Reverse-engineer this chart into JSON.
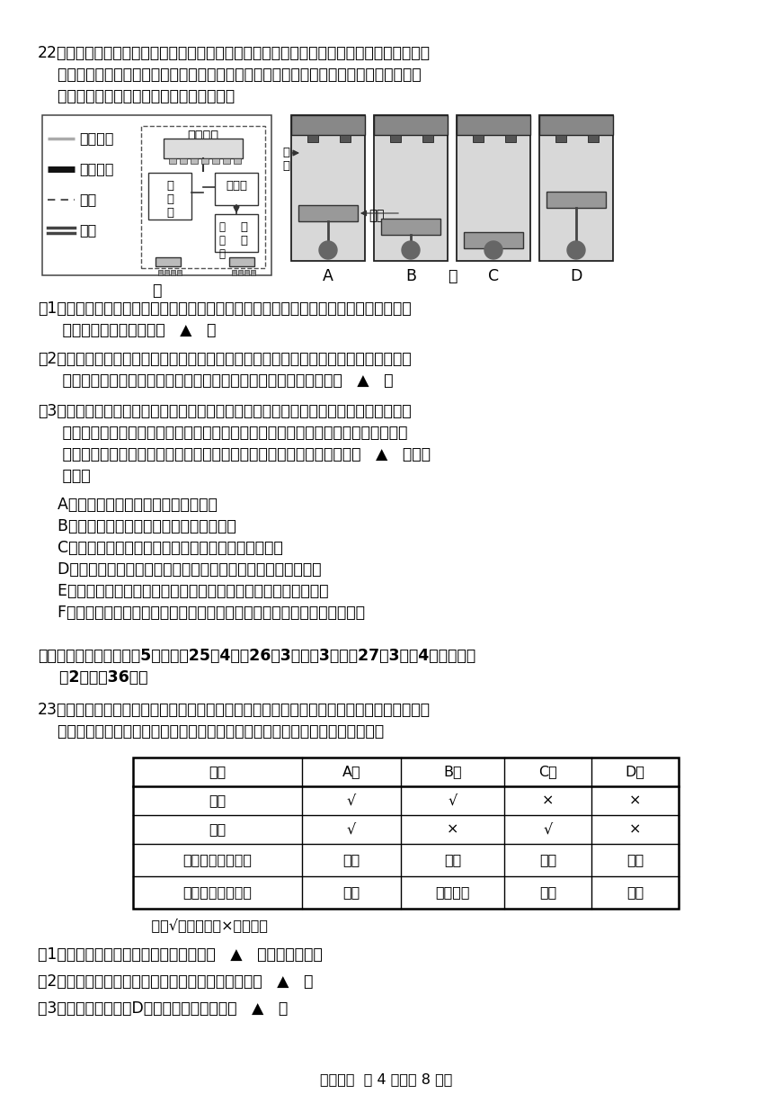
{
  "bg_color": "#ffffff",
  "text_color": "#000000",
  "font_size": 12.5,
  "font_size_small": 11.5,
  "font_size_tiny": 10.5,
  "page_width": 8.6,
  "page_height": 12.16,
  "q22_title": "22．为了减少汽车尾气排放造成大气污染的加剧，新能源汽车正逐渐成为汽车行业的焦点。插",
  "q22_line2": "    电式混动汽车是常见的一种新能源汽车，其驱动原理如图甲所示：行驶动力可由电动机或",
  "q22_line3": "    发动机单独提供，也可以由二者同时提供。",
  "q22_sub1_line1": "（1）当电池电量充足时，该汽车行驶时通过电池使电动机转动，从而驱动汽车行驶。此过",
  "q22_sub1_line2": "     程中能量的转化形式为：   ▲   。",
  "q22_sub2_line1": "（2）当电池电量不足时，插电式混动汽车动力由发动机提供。发动机是内燃机，通过燃油",
  "q22_sub2_line2": "     燃烧产生高压气体推动活塞做功，图乙中发动机产生动力的冲程的是   ▲   。",
  "q22_sub3_line1": "（3）电动汽车的核心部件之一是电池。当前新能源汽车应用的电池是以锂电池为主的液态",
  "q22_sub3_line2": "     电池。液态电池在安全性、电池容量等方面存在许多不足。因此研发固态电池成为许",
  "q22_sub3_line3": "     多车企未来重点课题，同时也面临挑战。下列观点反对研发固态电池的有   ▲   。（可",
  "q22_sub3_line4": "     多选）",
  "q22_optA": "    A．固态电池在高温下使用易发生爆炸",
  "q22_optB": "    B．固态电池内部电阻较大，充电时间较长",
  "q22_optC": "    C．生产固态电池需要高温高压环境，研发技术难度大",
  "q22_optD": "    D．固态电池的原材料比较稀缺，制作成本是液态电池的几百倍",
  "q22_optE": "    E．固态电池的能量密度更大，相同体积的固态电池续航能力更强",
  "q22_optF": "    F．相同容量的固态电池质量和体积更小，减轻汽车负重、增大了汽车空间",
  "section3_title": "三、实验探究题（本题有5小题，第25（4）、26（3）题各3分，第27（3）题4分，其余每",
  "section3_line2": "    空2分，共36分）",
  "q23_line1": "23．子宫是哺乳类动物胚胎发育的场所。某研究小组为了研究子宫是否具有其他功能进行如下",
  "q23_line2": "    实验：将若干大鼠随机均分成四组，每组大鼠执行不同的操作和任务，如下表：",
  "table_headers": [
    "组别",
    "A组",
    "B组",
    "C组",
    "D组"
  ],
  "table_row1": [
    "卵巢",
    "√",
    "√",
    "×",
    "×"
  ],
  "table_row2": [
    "子宫",
    "√",
    "×",
    "√",
    "×"
  ],
  "table_row3": [
    "基本记忆能力测试",
    "通过",
    "通过",
    "通过",
    "通过"
  ],
  "table_row4": [
    "复杂记忆能力测试",
    "通过",
    "无法通过",
    "通过",
    "通过"
  ],
  "table_note": "    注：√表示保留，×表示摘除",
  "q23_sub1": "（1）本实验中对大鼠的选择有什么要求？   ▲   。（列举两点）",
  "q23_sub2": "（2）本研究中，发现大鼠子宫还可能具有的功能是：   ▲   。",
  "q23_sub3": "（3）结合表中信息对D组实验现象作出解释。   ▲   。",
  "footer": "科学试题  第 4 页（共 8 页）",
  "legend_items": [
    "机械连接",
    "电气连接",
    "车架",
    "车轮"
  ],
  "dia_label_jia": "甲",
  "dia_label_yi": "乙",
  "engine_labels": [
    "A",
    "B",
    "C",
    "D"
  ],
  "schema_labels": [
    "传动装置",
    "发\n动\n机",
    "电动机",
    "电\n池",
    "充\n电\n器"
  ],
  "piston_label": "活塞",
  "air_label": "空\n气"
}
